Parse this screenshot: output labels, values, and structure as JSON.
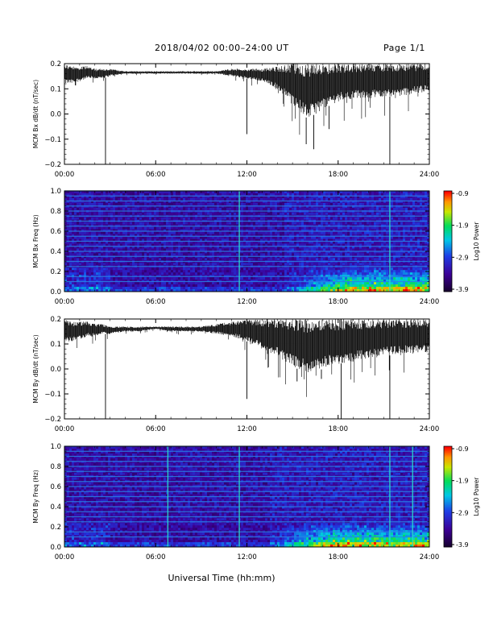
{
  "header": {
    "title": "2018/04/02   00:00–24:00 UT",
    "page": "Page 1/1"
  },
  "footer": {
    "xlabel": "Universal Time (hh:mm)"
  },
  "chart_data": [
    {
      "type": "line",
      "ylabel": "MCM Bx dB/dt (nT/sec)",
      "ylim": [
        -0.2,
        0.2
      ],
      "yticks": [
        "0.2",
        "0.1",
        "0.0",
        "−0.1",
        "−0.2"
      ],
      "xlim": [
        "00:00",
        "24:00"
      ],
      "xticks": [
        "00:00",
        "06:00",
        "12:00",
        "18:00",
        "24:00"
      ],
      "x_hours": [
        0,
        0.5,
        1,
        1.5,
        2,
        2.5,
        3,
        4,
        5,
        6,
        7,
        8,
        9,
        10,
        11,
        12,
        13,
        14,
        15,
        16,
        17,
        18,
        19,
        20,
        21,
        22,
        23,
        24
      ],
      "upper": [
        0.2,
        0.19,
        0.19,
        0.19,
        0.18,
        0.18,
        0.18,
        0.17,
        0.17,
        0.17,
        0.17,
        0.17,
        0.17,
        0.17,
        0.18,
        0.18,
        0.18,
        0.19,
        0.2,
        0.2,
        0.2,
        0.2,
        0.2,
        0.2,
        0.2,
        0.2,
        0.2,
        0.2
      ],
      "lower": [
        0.12,
        0.12,
        0.13,
        0.14,
        0.14,
        0.14,
        0.15,
        0.16,
        0.16,
        0.16,
        0.16,
        0.16,
        0.16,
        0.16,
        0.15,
        0.14,
        0.13,
        0.1,
        0.04,
        -0.02,
        0.02,
        0.05,
        0.06,
        0.06,
        0.07,
        0.07,
        0.08,
        0.09
      ],
      "spikes": [
        [
          2.7,
          -0.2
        ],
        [
          12.0,
          -0.08
        ],
        [
          15.9,
          -0.12
        ],
        [
          16.4,
          -0.14
        ],
        [
          17.4,
          -0.06
        ],
        [
          21.4,
          -0.2
        ]
      ]
    },
    {
      "type": "heatmap",
      "ylabel": "MCM Bx Freq (Hz)",
      "ylim": [
        0.0,
        1.0
      ],
      "yticks": [
        "1.0",
        "0.8",
        "0.6",
        "0.4",
        "0.2",
        "0.0"
      ],
      "xlim": [
        "00:00",
        "24:00"
      ],
      "xticks": [
        "00:00",
        "06:00",
        "12:00",
        "18:00",
        "24:00"
      ],
      "colorbar": {
        "label": "Log10 Power",
        "min": -3.9,
        "max": -0.9,
        "ticks": [
          "-0.9",
          "-1.9",
          "-2.9",
          "-3.9"
        ]
      },
      "harmonic_lines_hz": [
        0.1,
        0.15,
        0.25,
        0.3,
        0.35,
        0.4,
        0.45,
        0.5,
        0.55,
        0.6,
        0.65,
        0.7,
        0.75,
        0.8,
        0.85,
        0.9,
        0.95,
        1.0
      ],
      "vertical_lines_hours": [
        11.5,
        21.4
      ],
      "activity_start_hour": 14.5
    },
    {
      "type": "line",
      "ylabel": "MCM By dB/dt (nT/sec)",
      "ylim": [
        -0.2,
        0.2
      ],
      "yticks": [
        "0.2",
        "0.1",
        "0.0",
        "−0.1",
        "−0.2"
      ],
      "xlim": [
        "00:00",
        "24:00"
      ],
      "xticks": [
        "00:00",
        "06:00",
        "12:00",
        "18:00",
        "24:00"
      ],
      "x_hours": [
        0,
        0.5,
        1,
        1.5,
        2,
        2.5,
        3,
        4,
        5,
        6,
        7,
        8,
        9,
        10,
        11,
        12,
        13,
        14,
        15,
        16,
        17,
        18,
        19,
        20,
        21,
        22,
        23,
        24
      ],
      "upper": [
        0.2,
        0.19,
        0.19,
        0.19,
        0.18,
        0.18,
        0.17,
        0.17,
        0.17,
        0.17,
        0.17,
        0.17,
        0.17,
        0.18,
        0.19,
        0.2,
        0.2,
        0.2,
        0.2,
        0.2,
        0.2,
        0.2,
        0.2,
        0.2,
        0.2,
        0.2,
        0.2,
        0.2
      ],
      "lower": [
        0.1,
        0.11,
        0.12,
        0.13,
        0.13,
        0.14,
        0.14,
        0.15,
        0.15,
        0.16,
        0.15,
        0.15,
        0.15,
        0.14,
        0.13,
        0.11,
        0.08,
        0.05,
        0.01,
        -0.02,
        0.0,
        0.02,
        0.03,
        0.04,
        0.05,
        0.06,
        0.06,
        0.07
      ],
      "spikes": [
        [
          2.7,
          -0.2
        ],
        [
          12.0,
          -0.12
        ],
        [
          15.3,
          -0.05
        ],
        [
          16.9,
          -0.04
        ],
        [
          18.2,
          -0.2
        ],
        [
          21.4,
          -0.2
        ]
      ]
    },
    {
      "type": "heatmap",
      "ylabel": "MCM By Freq (Hz)",
      "ylim": [
        0.0,
        1.0
      ],
      "yticks": [
        "1.0",
        "0.8",
        "0.6",
        "0.4",
        "0.2",
        "0.0"
      ],
      "xlim": [
        "00:00",
        "24:00"
      ],
      "xticks": [
        "00:00",
        "06:00",
        "12:00",
        "18:00",
        "24:00"
      ],
      "colorbar": {
        "label": "Log10 Power",
        "min": -3.9,
        "max": -0.9,
        "ticks": [
          "-0.9",
          "-1.9",
          "-2.9",
          "-3.9"
        ]
      },
      "harmonic_lines_hz": [
        0.1,
        0.15,
        0.25,
        0.3,
        0.35,
        0.4,
        0.45,
        0.5,
        0.55,
        0.6,
        0.65,
        0.7,
        0.75,
        0.8,
        0.85,
        0.9,
        0.95,
        1.0
      ],
      "vertical_lines_hours": [
        6.8,
        11.5,
        21.4,
        22.9
      ],
      "activity_start_hour": 13.5
    }
  ]
}
